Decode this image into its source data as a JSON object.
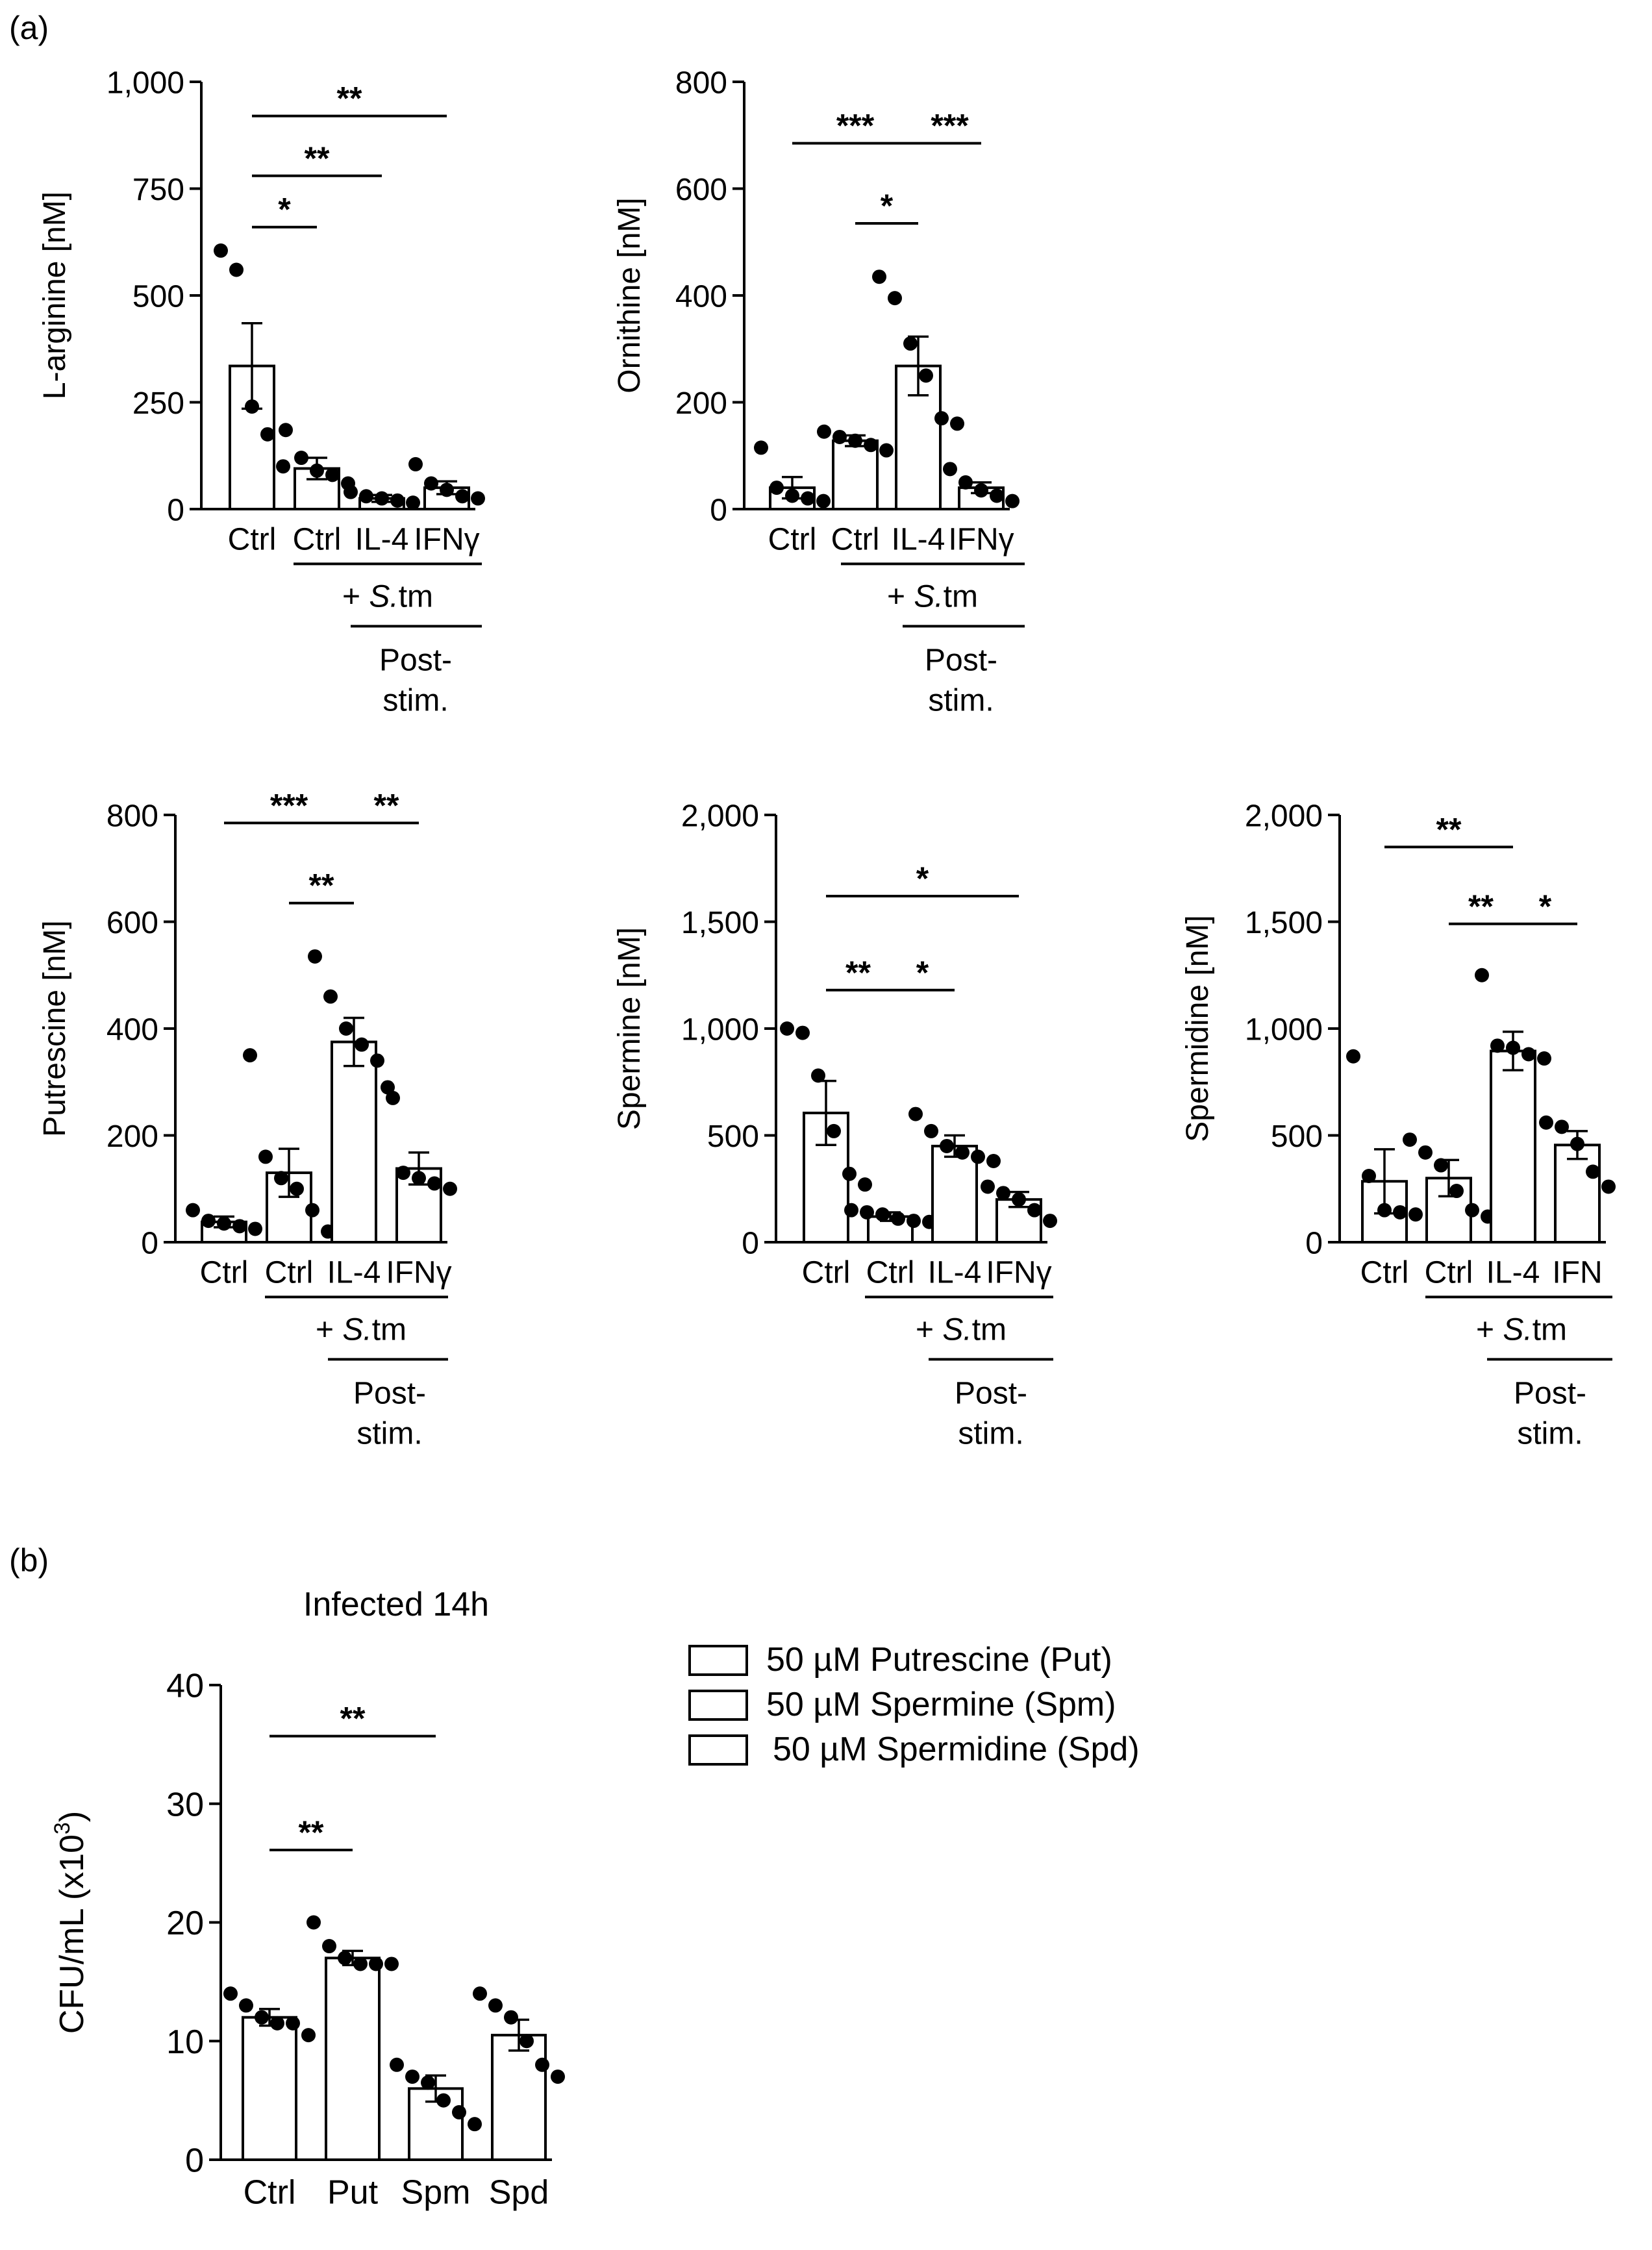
{
  "panel_a_label": "(a)",
  "panel_b_label": "(b)",
  "colors": {
    "ink": "#000000",
    "bar_fill": "#ffffff"
  },
  "chart_data": [
    {
      "id": "arginine",
      "type": "bar",
      "ylabel": "L-arginine [nM]",
      "ylim": [
        0,
        1000
      ],
      "yticks": [
        0,
        250,
        500,
        750,
        1000
      ],
      "ytick_labels": [
        "0",
        "250",
        "500",
        "750",
        "1,000"
      ],
      "categories": [
        "Ctrl",
        "Ctrl",
        "IL-4",
        "IFNγ"
      ],
      "values": [
        335,
        95,
        25,
        50
      ],
      "errors": [
        100,
        25,
        8,
        15
      ],
      "points": [
        [
          605,
          560,
          240,
          175,
          100
        ],
        [
          185,
          120,
          90,
          80,
          60
        ],
        [
          40,
          30,
          25,
          20,
          15
        ],
        [
          105,
          60,
          45,
          30,
          25
        ]
      ],
      "group_label_1": "+ S.tm",
      "group_label_2": [
        "Post-",
        "stim."
      ],
      "significance": [
        {
          "from": 0,
          "to": 3,
          "label": "**",
          "y": 920
        },
        {
          "from": 0,
          "to": 2,
          "label": "**",
          "y": 780
        },
        {
          "from": 0,
          "to": 1,
          "label": "*",
          "y": 660
        }
      ]
    },
    {
      "id": "ornithine",
      "type": "bar",
      "ylabel": "Ornithine [nM]",
      "ylim": [
        0,
        800
      ],
      "yticks": [
        0,
        200,
        400,
        600,
        800
      ],
      "ytick_labels": [
        "0",
        "200",
        "400",
        "600",
        "800"
      ],
      "categories": [
        "Ctrl",
        "Ctrl",
        "IL-4",
        "IFNγ"
      ],
      "values": [
        40,
        128,
        268,
        40
      ],
      "errors": [
        20,
        10,
        55,
        10
      ],
      "points": [
        [
          115,
          40,
          25,
          20,
          15
        ],
        [
          145,
          135,
          128,
          120,
          110
        ],
        [
          435,
          395,
          310,
          250,
          170,
          160
        ],
        [
          75,
          50,
          35,
          25,
          15
        ]
      ],
      "group_label_1": "+ S.tm",
      "group_label_2": [
        "Post-",
        "stim."
      ],
      "significance": [
        {
          "from": 0,
          "to": 2,
          "label": "***",
          "y": 685
        },
        {
          "from": 2,
          "to": 3,
          "label": "***",
          "y": 685
        },
        {
          "from": 1,
          "to": 2,
          "label": "*",
          "y": 535
        }
      ]
    },
    {
      "id": "putrescine",
      "type": "bar",
      "ylabel": "Putrescine [nM]",
      "ylim": [
        0,
        800
      ],
      "yticks": [
        0,
        200,
        400,
        600,
        800
      ],
      "ytick_labels": [
        "0",
        "200",
        "400",
        "600",
        "800"
      ],
      "categories": [
        "Ctrl",
        "Ctrl",
        "IL-4",
        "IFNγ"
      ],
      "values": [
        38,
        130,
        375,
        138
      ],
      "errors": [
        10,
        45,
        45,
        30
      ],
      "points": [
        [
          60,
          40,
          35,
          30,
          25
        ],
        [
          350,
          160,
          120,
          100,
          60,
          20
        ],
        [
          535,
          460,
          400,
          370,
          340,
          270
        ],
        [
          290,
          130,
          120,
          110,
          100
        ]
      ],
      "group_label_1": "+ S.tm",
      "group_label_2": [
        "Post-",
        "stim."
      ],
      "significance": [
        {
          "from": 0,
          "to": 2,
          "label": "***",
          "y": 785
        },
        {
          "from": 2,
          "to": 3,
          "label": "**",
          "y": 785
        },
        {
          "from": 1,
          "to": 2,
          "label": "**",
          "y": 635
        }
      ]
    },
    {
      "id": "spermine",
      "type": "bar",
      "ylabel": "Spermine [nM]",
      "ylim": [
        0,
        2000
      ],
      "yticks": [
        0,
        500,
        1000,
        1500,
        2000
      ],
      "ytick_labels": [
        "0",
        "500",
        "1,000",
        "1,500",
        "2,000"
      ],
      "categories": [
        "Ctrl",
        "Ctrl",
        "IL-4",
        "IFNγ"
      ],
      "values": [
        605,
        120,
        450,
        200
      ],
      "errors": [
        150,
        20,
        50,
        35
      ],
      "points": [
        [
          1000,
          980,
          780,
          520,
          320,
          270
        ],
        [
          150,
          140,
          130,
          110,
          100,
          95
        ],
        [
          600,
          520,
          450,
          420,
          400,
          380
        ],
        [
          260,
          230,
          200,
          150,
          100
        ]
      ],
      "group_label_1": "+ S.tm",
      "group_label_2": [
        "Post-",
        "stim."
      ],
      "significance": [
        {
          "from": 0,
          "to": 3,
          "label": "*",
          "y": 1620
        },
        {
          "from": 0,
          "to": 1,
          "label": "**",
          "y": 1180
        },
        {
          "from": 1,
          "to": 2,
          "label": "*",
          "y": 1180
        }
      ]
    },
    {
      "id": "spermidine",
      "type": "bar",
      "ylabel": "Spermidine [nM]",
      "ylim": [
        0,
        2000
      ],
      "yticks": [
        0,
        500,
        1000,
        1500,
        2000
      ],
      "ytick_labels": [
        "0",
        "500",
        "1,000",
        "1,500",
        "2,000"
      ],
      "categories": [
        "Ctrl",
        "Ctrl",
        "IL-4",
        "IFN"
      ],
      "values": [
        285,
        300,
        895,
        455
      ],
      "errors": [
        150,
        85,
        90,
        65
      ],
      "points": [
        [
          870,
          310,
          150,
          140,
          130
        ],
        [
          480,
          420,
          360,
          240,
          150,
          120
        ],
        [
          1250,
          920,
          910,
          880,
          860
        ],
        [
          560,
          540,
          460,
          330,
          260
        ]
      ],
      "group_label_1": "+ S.tm",
      "group_label_2": [
        "Post-",
        "stim."
      ],
      "significance": [
        {
          "from": 0,
          "to": 2,
          "label": "**",
          "y": 1850
        },
        {
          "from": 2,
          "to": 3,
          "label": "*",
          "y": 1490
        },
        {
          "from": 1,
          "to": 2,
          "label": "**",
          "y": 1490
        }
      ]
    },
    {
      "id": "cfu",
      "type": "bar",
      "title": "Infected 14h",
      "ylabel": "CFU/mL (x10",
      "ylabel_sup": "3",
      "ylabel_close": ")",
      "ylim": [
        0,
        40
      ],
      "yticks": [
        0,
        10,
        20,
        30,
        40
      ],
      "ytick_labels": [
        "0",
        "10",
        "20",
        "30",
        "40"
      ],
      "categories": [
        "Ctrl",
        "Put",
        "Spm",
        "Spd"
      ],
      "values": [
        12,
        17,
        6,
        10.5
      ],
      "errors": [
        0.7,
        0.6,
        1.1,
        1.3
      ],
      "points": [
        [
          14,
          13,
          12,
          11.5,
          11.5,
          10.5
        ],
        [
          20,
          18,
          17,
          16.5,
          16.5,
          16.5
        ],
        [
          8,
          7,
          6.5,
          5,
          4,
          3
        ],
        [
          14,
          13,
          12,
          10,
          8,
          7
        ]
      ],
      "significance": [
        {
          "from": 0,
          "to": 2,
          "label": "**",
          "y": 35.7
        },
        {
          "from": 0,
          "to": 1,
          "label": "**",
          "y": 26.1
        }
      ]
    }
  ],
  "legend": [
    "50 µM Putrescine (Put)",
    "50 µM Spermine (Spm)",
    "50 µM Spermidine (Spd)"
  ]
}
